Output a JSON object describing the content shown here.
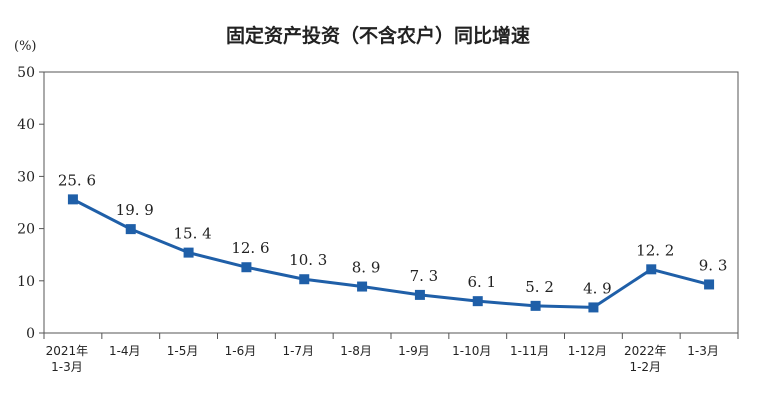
{
  "chart_data": {
    "type": "line",
    "title": "固定资产投资（不含农户）同比增速",
    "unit": "(%)",
    "ylim": [
      0,
      50
    ],
    "yticks": [
      0,
      10,
      20,
      30,
      40,
      50
    ],
    "categories": [
      [
        "2021年",
        "1-3月"
      ],
      [
        "1-4月"
      ],
      [
        "1-5月"
      ],
      [
        "1-6月"
      ],
      [
        "1-7月"
      ],
      [
        "1-8月"
      ],
      [
        "1-9月"
      ],
      [
        "1-10月"
      ],
      [
        "1-11月"
      ],
      [
        "1-12月"
      ],
      [
        "2022年",
        "1-2月"
      ],
      [
        "1-3月"
      ]
    ],
    "values": [
      25.6,
      19.9,
      15.4,
      12.6,
      10.3,
      8.9,
      7.3,
      6.1,
      5.2,
      4.9,
      12.2,
      9.3
    ],
    "data_labels": [
      "25. 6",
      "19. 9",
      "15. 4",
      "12. 6",
      "10. 3",
      "8. 9",
      "7. 3",
      "6. 1",
      "5. 2",
      "4. 9",
      "12. 2",
      "9. 3"
    ],
    "grid": false,
    "legend": "none",
    "color": "#1f5fa8"
  }
}
